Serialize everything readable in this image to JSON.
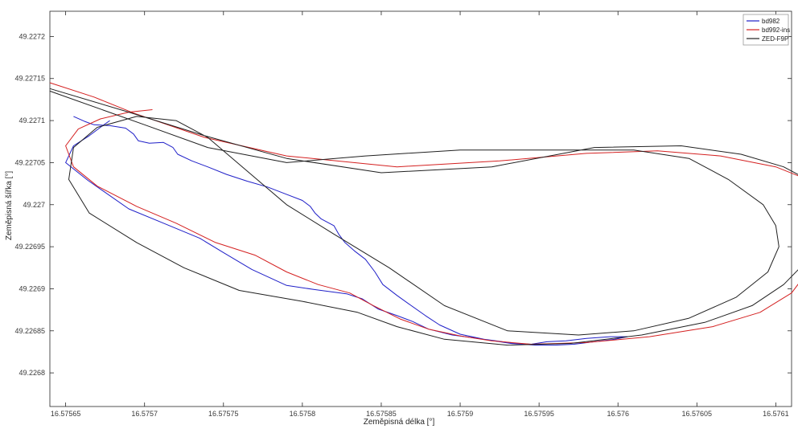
{
  "chart_data": {
    "type": "line",
    "title": "",
    "xlabel": "Zeměpisná délka [°]",
    "ylabel": "Zeměpisná šířka [°]",
    "xlim": [
      16.57564,
      16.57611
    ],
    "ylim": [
      49.22676,
      49.22723
    ],
    "x_ticks": [
      "16.57565",
      "16.5757",
      "16.57575",
      "16.5758",
      "16.57585",
      "16.5759",
      "16.57595",
      "16.576",
      "16.57605",
      "16.5761"
    ],
    "y_ticks": [
      "49.2272",
      "49.22715",
      "49.2271",
      "49.22705",
      "49.227",
      "49.22695",
      "49.2269",
      "49.22685",
      "49.2268"
    ],
    "grid": false,
    "legend_position": "top-right",
    "series": [
      {
        "name": "bd982",
        "color": "#1f1fc8",
        "points": [
          [
            16.575655,
            49.227105
          ],
          [
            16.575662,
            49.227099
          ],
          [
            16.575668,
            49.227095
          ],
          [
            16.575678,
            49.227094
          ],
          [
            16.575688,
            49.227091
          ],
          [
            16.575693,
            49.227084
          ],
          [
            16.575696,
            49.227076
          ],
          [
            16.575703,
            49.227073
          ],
          [
            16.575712,
            49.227074
          ],
          [
            16.575718,
            49.227068
          ],
          [
            16.575721,
            49.22706
          ],
          [
            16.57573,
            49.227052
          ],
          [
            16.57574,
            49.227045
          ],
          [
            16.575752,
            49.227036
          ],
          [
            16.575765,
            49.227028
          ],
          [
            16.575778,
            49.227021
          ],
          [
            16.575789,
            49.227013
          ],
          [
            16.5758,
            49.227005
          ],
          [
            16.575805,
            49.226998
          ],
          [
            16.575808,
            49.22699
          ],
          [
            16.575812,
            49.226983
          ],
          [
            16.57582,
            49.226975
          ],
          [
            16.575823,
            49.226965
          ],
          [
            16.575827,
            49.226955
          ],
          [
            16.575833,
            49.226945
          ],
          [
            16.57584,
            49.226935
          ],
          [
            16.575846,
            49.22692
          ],
          [
            16.575851,
            49.226905
          ],
          [
            16.57586,
            49.226892
          ],
          [
            16.575869,
            49.22688
          ],
          [
            16.575878,
            49.226868
          ],
          [
            16.575887,
            49.226857
          ],
          [
            16.5759,
            49.226846
          ],
          [
            16.575915,
            49.22684
          ],
          [
            16.575932,
            49.226835
          ],
          [
            16.575948,
            49.226833
          ],
          [
            16.57596,
            49.226833
          ],
          [
            16.575972,
            49.226834
          ],
          [
            16.575985,
            49.226837
          ],
          [
            16.575998,
            49.22684
          ],
          [
            16.576006,
            49.226843
          ],
          [
            16.575995,
            49.226843
          ],
          [
            16.57598,
            49.226841
          ],
          [
            16.575967,
            49.226838
          ],
          [
            16.575955,
            49.226837
          ],
          [
            16.575945,
            49.226834
          ],
          [
            16.575935,
            49.226835
          ],
          [
            16.575915,
            49.22684
          ],
          [
            16.575895,
            49.226845
          ],
          [
            16.57588,
            49.226852
          ],
          [
            16.57587,
            49.226861
          ],
          [
            16.57586,
            49.226868
          ],
          [
            16.575848,
            49.226876
          ],
          [
            16.575838,
            49.226888
          ],
          [
            16.575828,
            49.226894
          ],
          [
            16.575808,
            49.226899
          ],
          [
            16.57579,
            49.226904
          ],
          [
            16.575768,
            49.226923
          ],
          [
            16.57575,
            49.226943
          ],
          [
            16.575735,
            49.22696
          ],
          [
            16.575712,
            49.226978
          ],
          [
            16.57569,
            49.226995
          ],
          [
            16.575664,
            49.227029
          ],
          [
            16.57565,
            49.22705
          ],
          [
            16.575655,
            49.22707
          ],
          [
            16.575665,
            49.227082
          ],
          [
            16.575672,
            49.227092
          ],
          [
            16.575678,
            49.2271
          ]
        ]
      },
      {
        "name": "bd992-ins",
        "color": "#d42020",
        "points": [
          [
            16.57564,
            49.227145
          ],
          [
            16.575668,
            49.227128
          ],
          [
            16.575693,
            49.227109
          ],
          [
            16.57571,
            49.227098
          ],
          [
            16.575738,
            49.22708
          ],
          [
            16.57579,
            49.227058
          ],
          [
            16.57586,
            49.227045
          ],
          [
            16.575925,
            49.227052
          ],
          [
            16.57598,
            49.227061
          ],
          [
            16.576025,
            49.227064
          ],
          [
            16.576065,
            49.227058
          ],
          [
            16.5761,
            49.227045
          ],
          [
            16.57612,
            49.22703
          ],
          [
            16.57613,
            49.22701
          ],
          [
            16.57613,
            49.226985
          ],
          [
            16.576125,
            49.22696
          ],
          [
            16.576125,
            49.22694
          ],
          [
            16.57612,
            49.22692
          ],
          [
            16.57611,
            49.226895
          ],
          [
            16.57609,
            49.226872
          ],
          [
            16.57606,
            49.226855
          ],
          [
            16.57602,
            49.226843
          ],
          [
            16.57598,
            49.226836
          ],
          [
            16.575945,
            49.226834
          ],
          [
            16.57592,
            49.226838
          ],
          [
            16.5759,
            49.226844
          ],
          [
            16.57588,
            49.226852
          ],
          [
            16.575862,
            49.226864
          ],
          [
            16.575845,
            49.22688
          ],
          [
            16.57583,
            49.226895
          ],
          [
            16.57581,
            49.226905
          ],
          [
            16.57579,
            49.22692
          ],
          [
            16.57577,
            49.22694
          ],
          [
            16.575745,
            49.226955
          ],
          [
            16.57572,
            49.226978
          ],
          [
            16.575695,
            49.226998
          ],
          [
            16.57567,
            49.227022
          ],
          [
            16.575655,
            49.227045
          ],
          [
            16.57565,
            49.22707
          ],
          [
            16.575658,
            49.22709
          ],
          [
            16.575672,
            49.227102
          ],
          [
            16.57569,
            49.22711
          ],
          [
            16.575705,
            49.227113
          ]
        ]
      },
      {
        "name": "ZED-F9P",
        "color": "#202020",
        "points": [
          [
            16.57564,
            49.227138
          ],
          [
            16.57569,
            49.22711
          ],
          [
            16.575738,
            49.227082
          ],
          [
            16.57579,
            49.227055
          ],
          [
            16.57585,
            49.227038
          ],
          [
            16.57592,
            49.227045
          ],
          [
            16.575985,
            49.227068
          ],
          [
            16.57604,
            49.22707
          ],
          [
            16.576078,
            49.22706
          ],
          [
            16.576105,
            49.227045
          ],
          [
            16.576125,
            49.227025
          ],
          [
            16.576132,
            49.227005
          ],
          [
            16.576128,
            49.22698
          ],
          [
            16.576123,
            49.226955
          ],
          [
            16.576118,
            49.22693
          ],
          [
            16.576105,
            49.226905
          ],
          [
            16.576085,
            49.22688
          ],
          [
            16.576055,
            49.22686
          ],
          [
            16.576015,
            49.226845
          ],
          [
            16.57597,
            49.226835
          ],
          [
            16.57593,
            49.226833
          ],
          [
            16.57589,
            49.22684
          ],
          [
            16.57586,
            49.226855
          ],
          [
            16.575835,
            49.226872
          ],
          [
            16.5758,
            49.226885
          ],
          [
            16.57576,
            49.226898
          ],
          [
            16.575725,
            49.226925
          ],
          [
            16.575695,
            49.226955
          ],
          [
            16.575665,
            49.22699
          ],
          [
            16.575652,
            49.22703
          ],
          [
            16.575655,
            49.227068
          ],
          [
            16.57567,
            49.227092
          ],
          [
            16.575695,
            49.227105
          ],
          [
            16.57572,
            49.2271
          ],
          [
            16.57574,
            49.22708
          ],
          [
            16.575765,
            49.22704
          ],
          [
            16.57579,
            49.227
          ],
          [
            16.57582,
            49.226965
          ],
          [
            16.575855,
            49.226925
          ],
          [
            16.57589,
            49.22688
          ],
          [
            16.57593,
            49.22685
          ],
          [
            16.575975,
            49.226845
          ],
          [
            16.57601,
            49.22685
          ],
          [
            16.576045,
            49.226865
          ],
          [
            16.576075,
            49.22689
          ],
          [
            16.576095,
            49.22692
          ],
          [
            16.576102,
            49.22695
          ],
          [
            16.5761,
            49.226975
          ],
          [
            16.576092,
            49.227
          ],
          [
            16.57607,
            49.22703
          ],
          [
            16.576045,
            49.227055
          ],
          [
            16.57601,
            49.227065
          ],
          [
            16.57596,
            49.227065
          ],
          [
            16.5759,
            49.227065
          ],
          [
            16.57584,
            49.227058
          ],
          [
            16.57579,
            49.22705
          ],
          [
            16.57574,
            49.227068
          ],
          [
            16.5757,
            49.227095
          ],
          [
            16.57564,
            49.227135
          ]
        ]
      }
    ]
  }
}
